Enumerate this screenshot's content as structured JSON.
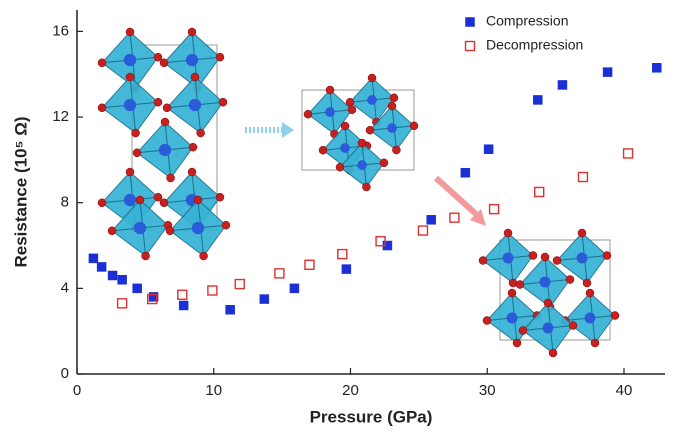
{
  "chart_data": {
    "type": "scatter",
    "x_label": "Pressure (GPa)",
    "y_label": "Resistance (10⁵ Ω)",
    "xlim": [
      0,
      43
    ],
    "ylim": [
      0,
      17
    ],
    "xticks": [
      0,
      10,
      20,
      30,
      40
    ],
    "yticks": [
      0,
      4,
      8,
      12,
      16
    ],
    "legend_position": "upper right",
    "series": [
      {
        "name": "Compression",
        "color": "#1a2fd6",
        "marker": "filled-square",
        "x": [
          1.2,
          1.8,
          2.6,
          3.3,
          4.4,
          5.6,
          7.8,
          11.2,
          13.7,
          15.9,
          19.7,
          22.7,
          25.9,
          28.4,
          30.1,
          33.7,
          35.5,
          38.8,
          42.4
        ],
        "values": [
          5.4,
          5.0,
          4.6,
          4.4,
          4.0,
          3.6,
          3.2,
          3.0,
          3.5,
          4.0,
          4.9,
          6.0,
          7.2,
          9.4,
          10.5,
          12.8,
          13.5,
          14.1,
          14.3
        ]
      },
      {
        "name": "Decompression",
        "color": "#e03030",
        "marker": "open-square",
        "x": [
          3.3,
          5.5,
          7.7,
          9.9,
          11.9,
          14.8,
          17.0,
          19.4,
          22.2,
          25.3,
          27.6,
          30.5,
          33.8,
          37.0,
          40.3
        ],
        "values": [
          3.3,
          3.5,
          3.7,
          3.9,
          4.2,
          4.7,
          5.1,
          5.6,
          6.2,
          6.7,
          7.3,
          7.7,
          8.5,
          9.2,
          10.3
        ]
      }
    ]
  }
}
